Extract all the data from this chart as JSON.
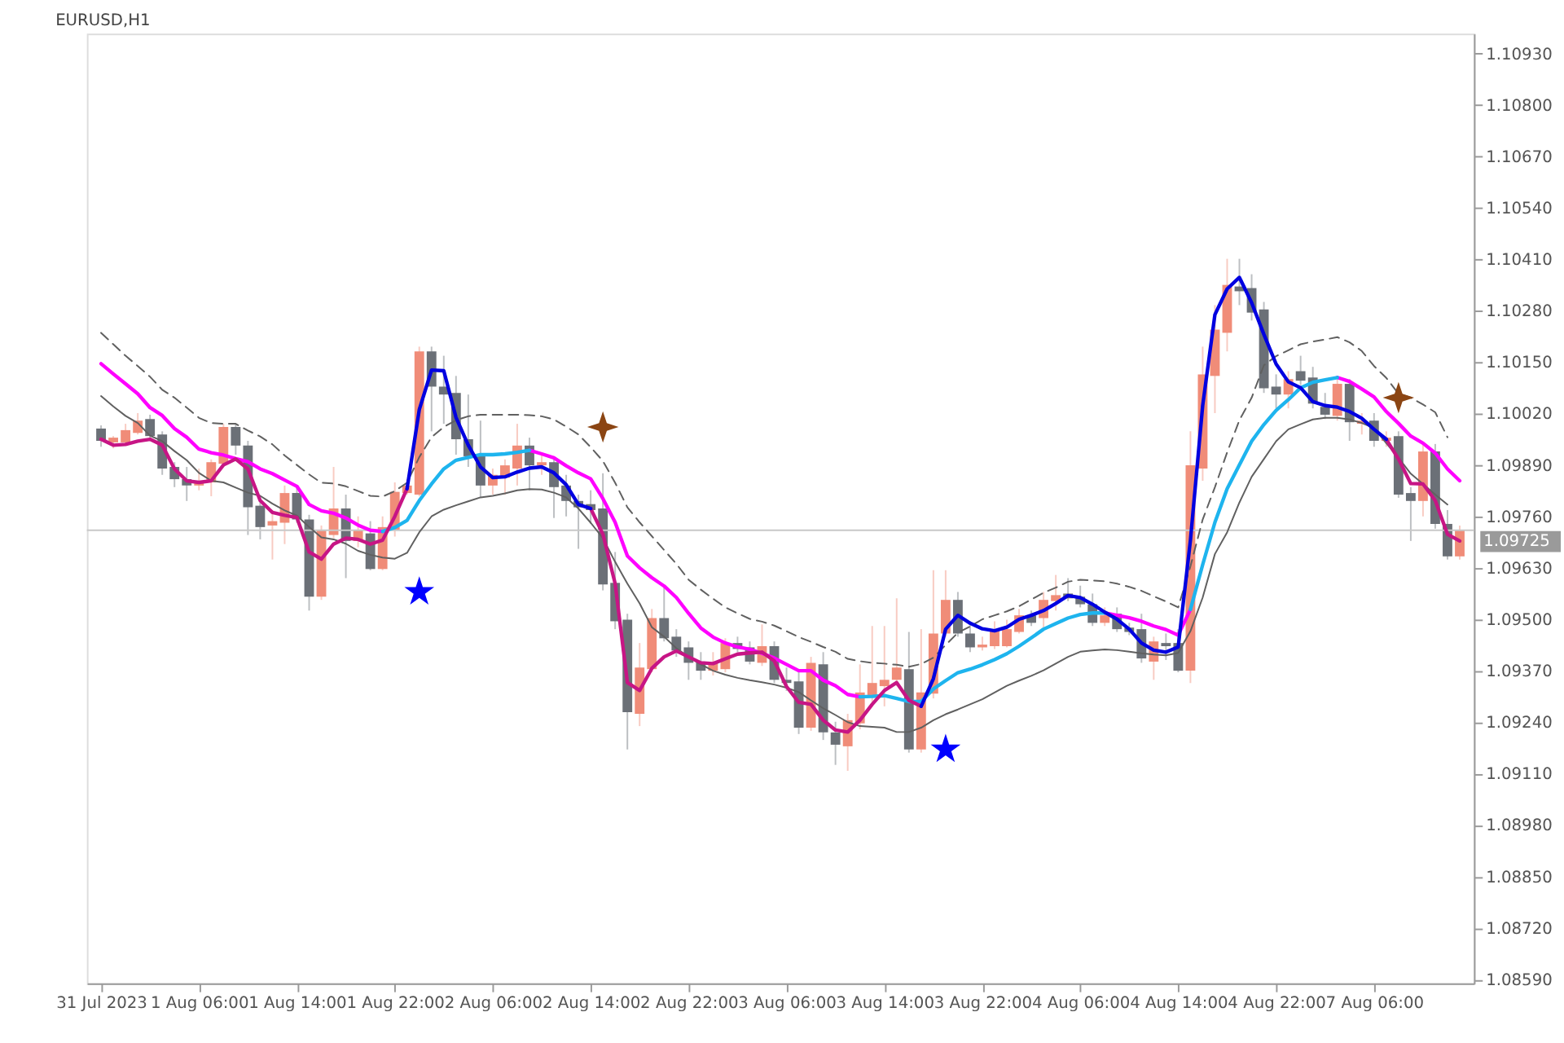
{
  "chart_data": {
    "type": "candlestick",
    "title": "EURUSD,H1",
    "categories": [
      "31 Jul 2023",
      null,
      null,
      null,
      null,
      null,
      null,
      null,
      "1 Aug 06:00",
      null,
      null,
      null,
      null,
      null,
      null,
      null,
      "1 Aug 14:00",
      null,
      null,
      null,
      null,
      null,
      null,
      null,
      "1 Aug 22:00",
      null,
      null,
      null,
      null,
      null,
      null,
      null,
      "2 Aug 06:00",
      null,
      null,
      null,
      null,
      null,
      null,
      null,
      "2 Aug 14:00",
      null,
      null,
      null,
      null,
      null,
      null,
      null,
      "2 Aug 22:00",
      null,
      null,
      null,
      null,
      null,
      null,
      null,
      "3 Aug 06:00",
      null,
      null,
      null,
      null,
      null,
      null,
      null,
      "3 Aug 14:00",
      null,
      null,
      null,
      null,
      null,
      null,
      null,
      "3 Aug 22:00",
      null,
      null,
      null,
      null,
      null,
      null,
      null,
      "4 Aug 06:00",
      null,
      null,
      null,
      null,
      null,
      null,
      null,
      "4 Aug 14:00",
      null,
      null,
      null,
      null,
      null,
      null,
      null,
      "4 Aug 22:00",
      null,
      null,
      null,
      null,
      null,
      null,
      null,
      "7 Aug 06:00",
      null,
      null,
      null,
      null,
      null,
      null,
      null
    ],
    "ohlc": [
      [
        1.09982,
        1.0999,
        1.09936,
        1.09951
      ],
      [
        1.09947,
        1.09963,
        1.09932,
        1.09959
      ],
      [
        1.09947,
        1.09994,
        1.09943,
        1.09978
      ],
      [
        1.09971,
        1.10021,
        1.09967,
        1.10002
      ],
      [
        1.10006,
        1.10017,
        1.09955,
        1.09963
      ],
      [
        1.09967,
        1.09975,
        1.09865,
        1.09881
      ],
      [
        1.09885,
        1.09897,
        1.09834,
        1.09854
      ],
      [
        1.09854,
        1.09885,
        1.09799,
        1.09838
      ],
      [
        1.09838,
        1.09881,
        1.09826,
        1.0985
      ],
      [
        1.09846,
        1.09904,
        1.09811,
        1.09897
      ],
      [
        1.09893,
        1.09994,
        1.09885,
        1.09986
      ],
      [
        1.09986,
        1.09994,
        1.09916,
        1.09939
      ],
      [
        1.09939,
        1.09951,
        1.09713,
        1.09783
      ],
      [
        1.09787,
        1.09807,
        1.09702,
        1.09733
      ],
      [
        1.09737,
        1.09776,
        1.09651,
        1.09748
      ],
      [
        1.09744,
        1.09838,
        1.0969,
        1.09819
      ],
      [
        1.09819,
        1.09838,
        1.09744,
        1.09752
      ],
      [
        1.09752,
        1.09764,
        1.09522,
        1.09557
      ],
      [
        1.09557,
        1.09737,
        1.09549,
        1.09725
      ],
      [
        1.09713,
        1.09885,
        1.09705,
        1.0978
      ],
      [
        1.0978,
        1.09815,
        1.09604,
        1.09698
      ],
      [
        1.09698,
        1.0976,
        1.09682,
        1.09725
      ],
      [
        1.09717,
        1.09748,
        1.09624,
        1.09627
      ],
      [
        1.09627,
        1.0976,
        1.09624,
        1.09733
      ],
      [
        1.09725,
        1.09846,
        1.09709,
        1.09822
      ],
      [
        1.09819,
        1.09854,
        1.09815,
        1.09838
      ],
      [
        1.09815,
        1.10189,
        1.09811,
        1.10177
      ],
      [
        1.10177,
        1.10189,
        1.09975,
        1.10088
      ],
      [
        1.10088,
        1.10166,
        1.09994,
        1.10068
      ],
      [
        1.10072,
        1.10115,
        1.09916,
        1.09955
      ],
      [
        1.09955,
        1.10068,
        1.09885,
        1.09912
      ],
      [
        1.09912,
        1.10002,
        1.09807,
        1.09838
      ],
      [
        1.09838,
        1.09881,
        1.09815,
        1.09865
      ],
      [
        1.09858,
        1.09904,
        1.09815,
        1.09889
      ],
      [
        1.09881,
        1.09994,
        1.09838,
        1.09939
      ],
      [
        1.09939,
        1.09959,
        1.09826,
        1.09889
      ],
      [
        1.09889,
        1.09916,
        1.09865,
        1.09897
      ],
      [
        1.09897,
        1.09912,
        1.09756,
        1.09834
      ],
      [
        1.09838,
        1.09865,
        1.0976,
        1.09799
      ],
      [
        1.09799,
        1.09815,
        1.09678,
        1.09783
      ],
      [
        1.09791,
        1.09826,
        1.09741,
        1.09776
      ],
      [
        1.0978,
        1.09869,
        1.09573,
        1.09588
      ],
      [
        1.09592,
        1.0967,
        1.09475,
        1.09495
      ],
      [
        1.09499,
        1.09514,
        1.09171,
        1.09265
      ],
      [
        1.09261,
        1.0944,
        1.0923,
        1.09378
      ],
      [
        1.09374,
        1.09526,
        1.09366,
        1.09503
      ],
      [
        1.09503,
        1.09581,
        1.09444,
        1.09452
      ],
      [
        1.09456,
        1.09475,
        1.09405,
        1.09421
      ],
      [
        1.09429,
        1.09444,
        1.09347,
        1.0939
      ],
      [
        1.09393,
        1.09417,
        1.09347,
        1.0937
      ],
      [
        1.0937,
        1.09417,
        1.09358,
        1.0939
      ],
      [
        1.09374,
        1.09452,
        1.09366,
        1.0944
      ],
      [
        1.0944,
        1.09456,
        1.09417,
        1.09425
      ],
      [
        1.09429,
        1.09444,
        1.09386,
        1.09393
      ],
      [
        1.0939,
        1.09487,
        1.09382,
        1.09432
      ],
      [
        1.09432,
        1.09444,
        1.09339,
        1.09347
      ],
      [
        1.09347,
        1.09378,
        1.09319,
        1.09339
      ],
      [
        1.09343,
        1.09366,
        1.0921,
        1.09226
      ],
      [
        1.09226,
        1.09405,
        1.09218,
        1.0939
      ],
      [
        1.09386,
        1.09417,
        1.09195,
        1.09214
      ],
      [
        1.09214,
        1.09241,
        1.09132,
        1.09183
      ],
      [
        1.09179,
        1.09261,
        1.09117,
        1.09245
      ],
      [
        1.09237,
        1.09386,
        1.09222,
        1.09315
      ],
      [
        1.09308,
        1.09483,
        1.0928,
        1.09339
      ],
      [
        1.09331,
        1.09483,
        1.0928,
        1.09347
      ],
      [
        1.09347,
        1.09553,
        1.09331,
        1.09378
      ],
      [
        1.09374,
        1.09468,
        1.09163,
        1.09171
      ],
      [
        1.09171,
        1.09475,
        1.09163,
        1.09315
      ],
      [
        1.09312,
        1.09624,
        1.093,
        1.09464
      ],
      [
        1.09464,
        1.09624,
        1.09456,
        1.09549
      ],
      [
        1.09549,
        1.09569,
        1.09456,
        1.09464
      ],
      [
        1.09464,
        1.09495,
        1.09417,
        1.09429
      ],
      [
        1.09429,
        1.09456,
        1.09421,
        1.09436
      ],
      [
        1.09432,
        1.09495,
        1.09425,
        1.09471
      ],
      [
        1.09432,
        1.09499,
        1.09429,
        1.09475
      ],
      [
        1.09468,
        1.09526,
        1.09464,
        1.0951
      ],
      [
        1.0951,
        1.09522,
        1.09483,
        1.09491
      ],
      [
        1.09503,
        1.09569,
        1.09475,
        1.09549
      ],
      [
        1.09546,
        1.09612,
        1.09522,
        1.09561
      ],
      [
        1.09565,
        1.09604,
        1.09546,
        1.09553
      ],
      [
        1.09557,
        1.09585,
        1.0953,
        1.09538
      ],
      [
        1.09538,
        1.09565,
        1.09483,
        1.09491
      ],
      [
        1.09491,
        1.0953,
        1.09483,
        1.0951
      ],
      [
        1.09514,
        1.0953,
        1.09468,
        1.09475
      ],
      [
        1.09479,
        1.09491,
        1.0946,
        1.09468
      ],
      [
        1.09475,
        1.09514,
        1.0939,
        1.09401
      ],
      [
        1.09393,
        1.09456,
        1.09347,
        1.09444
      ],
      [
        1.0944,
        1.09464,
        1.09397,
        1.09432
      ],
      [
        1.0944,
        1.09475,
        1.09366,
        1.0937
      ],
      [
        1.0937,
        1.09975,
        1.09339,
        1.09889
      ],
      [
        1.09881,
        1.10189,
        1.0985,
        1.10119
      ],
      [
        1.10115,
        1.10294,
        1.10021,
        1.10232
      ],
      [
        1.10224,
        1.10411,
        1.10177,
        1.10345
      ],
      [
        1.10341,
        1.10411,
        1.10294,
        1.10329
      ],
      [
        1.10337,
        1.10372,
        1.10255,
        1.10275
      ],
      [
        1.10283,
        1.10302,
        1.10072,
        1.10084
      ],
      [
        1.10088,
        1.10119,
        1.10033,
        1.10068
      ],
      [
        1.10068,
        1.10127,
        1.10033,
        1.10107
      ],
      [
        1.10127,
        1.10166,
        1.10092,
        1.10103
      ],
      [
        1.10111,
        1.10138,
        1.10033,
        1.10045
      ],
      [
        1.10037,
        1.10072,
        1.10006,
        1.10017
      ],
      [
        1.10014,
        1.10107,
        1.10002,
        1.10095
      ],
      [
        1.10095,
        1.10107,
        1.09951,
        1.09998
      ],
      [
        1.09994,
        1.10021,
        1.09967,
        1.10002
      ],
      [
        1.10002,
        1.10021,
        1.09936,
        1.09951
      ],
      [
        1.09951,
        1.09975,
        1.09936,
        1.09959
      ],
      [
        1.09963,
        1.09975,
        1.09807,
        1.09815
      ],
      [
        1.09819,
        1.09834,
        1.09698,
        1.09799
      ],
      [
        1.09799,
        1.09943,
        1.0976,
        1.09924
      ],
      [
        1.09924,
        1.09943,
        1.09729,
        1.09741
      ],
      [
        1.09741,
        1.09776,
        1.09651,
        1.09659
      ],
      [
        1.09659,
        1.09737,
        1.09651,
        1.09725
      ]
    ],
    "colors": [
      "#6b7077",
      "#f08c78",
      "#f08c78",
      "#f08c78",
      "#6b7077",
      "#6b7077",
      "#6b7077",
      "#6b7077",
      "#f08c78",
      "#f08c78",
      "#f08c78",
      "#6b7077",
      "#6b7077",
      "#6b7077",
      "#f08c78",
      "#f08c78",
      "#6b7077",
      "#6b7077",
      "#f08c78",
      "#f08c78",
      "#6b7077",
      "#f08c78",
      "#6b7077",
      "#f08c78",
      "#f08c78",
      "#f08c78",
      "#f08c78",
      "#6b7077",
      "#6b7077",
      "#6b7077",
      "#6b7077",
      "#6b7077",
      "#f08c78",
      "#f08c78",
      "#f08c78",
      "#6b7077",
      "#f08c78",
      "#6b7077",
      "#6b7077",
      "#6b7077",
      "#6b7077",
      "#6b7077",
      "#6b7077",
      "#6b7077",
      "#f08c78",
      "#f08c78",
      "#6b7077",
      "#6b7077",
      "#6b7077",
      "#6b7077",
      "#f08c78",
      "#f08c78",
      "#6b7077",
      "#6b7077",
      "#f08c78",
      "#6b7077",
      "#6b7077",
      "#6b7077",
      "#f08c78",
      "#6b7077",
      "#6b7077",
      "#f08c78",
      "#f08c78",
      "#f08c78",
      "#f08c78",
      "#f08c78",
      "#6b7077",
      "#f08c78",
      "#f08c78",
      "#f08c78",
      "#6b7077",
      "#6b7077",
      "#f08c78",
      "#f08c78",
      "#f08c78",
      "#f08c78",
      "#6b7077",
      "#f08c78",
      "#f08c78",
      "#6b7077",
      "#6b7077",
      "#6b7077",
      "#f08c78",
      "#6b7077",
      "#6b7077",
      "#6b7077",
      "#f08c78",
      "#6b7077",
      "#6b7077",
      "#f08c78",
      "#f08c78",
      "#f08c78",
      "#f08c78",
      "#6b7077",
      "#6b7077",
      "#6b7077",
      "#6b7077",
      "#f08c78",
      "#6b7077",
      "#6b7077",
      "#6b7077",
      "#f08c78",
      "#6b7077",
      "#f08c78",
      "#6b7077",
      "#f08c78",
      "#6b7077",
      "#6b7077",
      "#f08c78",
      "#6b7077",
      "#6b7077",
      "#f08c78"
    ],
    "ylim": [
      1.0858,
      1.1098
    ],
    "yticks": [
      {
        "value": 1.0859,
        "label": "1.08590"
      },
      {
        "value": 1.0872,
        "label": "1.08720"
      },
      {
        "value": 1.0885,
        "label": "1.08850"
      },
      {
        "value": 1.0898,
        "label": "1.08980"
      },
      {
        "value": 1.0911,
        "label": "1.09110"
      },
      {
        "value": 1.0924,
        "label": "1.09240"
      },
      {
        "value": 1.0937,
        "label": "1.09370"
      },
      {
        "value": 1.095,
        "label": "1.09500"
      },
      {
        "value": 1.0963,
        "label": "1.09630"
      },
      {
        "value": 1.0976,
        "label": "1.09760"
      },
      {
        "value": 1.0989,
        "label": "1.09890"
      },
      {
        "value": 1.1002,
        "label": "1.10020"
      },
      {
        "value": 1.1015,
        "label": "1.10150"
      },
      {
        "value": 1.1028,
        "label": "1.10280"
      },
      {
        "value": 1.1041,
        "label": "1.10410"
      },
      {
        "value": 1.1054,
        "label": "1.10540"
      },
      {
        "value": 1.1067,
        "label": "1.10670"
      },
      {
        "value": 1.108,
        "label": "1.10800"
      },
      {
        "value": 1.1093,
        "label": "1.10930"
      }
    ],
    "ref_lines": [
      {
        "axis": "y",
        "value": 1.09725,
        "label": "1.09725",
        "color": "#c8c8c8"
      }
    ],
    "grid": false,
    "series": [
      {
        "type": "line",
        "color": "#606060",
        "line_style": "dashed",
        "values": [
          1.10224,
          1.10195,
          1.10166,
          1.1014,
          1.10113,
          1.1008,
          1.1006,
          1.10035,
          1.10009,
          1.09996,
          1.09994,
          1.09994,
          1.09977,
          1.09962,
          1.09942,
          1.09914,
          1.0989,
          1.09866,
          1.09845,
          1.09843,
          1.09836,
          1.09824,
          1.09812,
          1.0981,
          1.09824,
          1.09845,
          1.0991,
          1.0996,
          1.09986,
          1.10003,
          1.10013,
          1.10017,
          1.10017,
          1.10017,
          1.10017,
          1.10016,
          1.10013,
          1.10005,
          1.09987,
          1.09967,
          1.09935,
          1.099,
          1.09845,
          1.09783,
          1.09745,
          1.0971,
          1.09675,
          1.0964,
          1.096,
          1.09575,
          1.09552,
          1.0953,
          1.09515,
          1.09501,
          1.09494,
          1.09484,
          1.0947,
          1.09455,
          1.09443,
          1.0943,
          1.09418,
          1.094,
          1.09394,
          1.0939,
          1.09388,
          1.09385,
          1.0938,
          1.09387,
          1.09403,
          1.09435,
          1.09466,
          1.09482,
          1.095,
          1.0951,
          1.0952,
          1.09533,
          1.0955,
          1.09567,
          1.0958,
          1.09595,
          1.096,
          1.09598,
          1.09596,
          1.0959,
          1.09582,
          1.09572,
          1.09558,
          1.09545,
          1.0953,
          1.09634,
          1.09752,
          1.09834,
          1.09922,
          1.10003,
          1.1006,
          1.10142,
          1.10165,
          1.1018,
          1.10195,
          1.10202,
          1.10207,
          1.10213,
          1.102,
          1.10178,
          1.1014,
          1.1011,
          1.1007,
          1.1006,
          1.10043,
          1.10023,
          1.0996,
          null
        ]
      },
      {
        "type": "line",
        "color": "#606060",
        "line_style": "solid",
        "values": [
          1.10064,
          1.10038,
          1.10014,
          1.09996,
          1.09964,
          1.0995,
          1.09925,
          1.09902,
          1.0987,
          1.0985,
          1.09846,
          1.09833,
          1.0982,
          1.09812,
          1.09792,
          1.09775,
          1.09762,
          1.09733,
          1.09707,
          1.09702,
          1.09691,
          1.09673,
          1.09663,
          1.09656,
          1.09653,
          1.09668,
          1.0972,
          1.0976,
          1.09777,
          1.09788,
          1.09798,
          1.09808,
          1.09812,
          1.09818,
          1.09826,
          1.09829,
          1.09828,
          1.0982,
          1.09808,
          1.0978,
          1.09744,
          1.09705,
          1.09645,
          1.0959,
          1.0954,
          1.0948,
          1.09456,
          1.09427,
          1.09405,
          1.09386,
          1.0937,
          1.0936,
          1.09352,
          1.09346,
          1.09341,
          1.09335,
          1.09327,
          1.09316,
          1.09295,
          1.09275,
          1.09258,
          1.0924,
          1.0923,
          1.09228,
          1.09226,
          1.09215,
          1.09215,
          1.09226,
          1.09245,
          1.0926,
          1.09272,
          1.09285,
          1.09298,
          1.09315,
          1.09332,
          1.09345,
          1.09357,
          1.09371,
          1.09388,
          1.09405,
          1.09418,
          1.09421,
          1.09424,
          1.09422,
          1.09418,
          1.09414,
          1.09411,
          1.09409,
          1.09415,
          1.0947,
          1.09555,
          1.09665,
          1.0972,
          1.09795,
          1.0986,
          1.09905,
          1.0995,
          1.0998,
          1.09993,
          1.10005,
          1.10009,
          1.10009,
          1.10005,
          1.09996,
          1.09983,
          1.09945,
          1.09908,
          1.09868,
          1.09842,
          1.09815,
          1.0979,
          null
        ]
      },
      {
        "type": "line",
        "color": "#ff00ff",
        "values": [
          1.10146,
          1.1012,
          1.10095,
          1.1007,
          1.10035,
          1.10015,
          1.09982,
          1.0996,
          1.0993,
          1.09921,
          1.09915,
          1.09906,
          1.09898,
          1.0988,
          1.09868,
          1.09852,
          1.09836,
          1.0979,
          1.09774,
          1.09768,
          1.09756,
          1.09738,
          1.09725,
          1.09722,
          null,
          null,
          null,
          null,
          null,
          null,
          null,
          null,
          null,
          null,
          null,
          1.09927,
          1.09918,
          1.09908,
          1.09888,
          1.0987,
          1.09855,
          1.09805,
          1.09745,
          1.0966,
          1.0963,
          1.09605,
          1.09584,
          1.09555,
          1.09515,
          1.09478,
          1.09455,
          1.0944,
          1.0943,
          1.09424,
          1.09414,
          1.09402,
          1.09386,
          1.0937,
          1.0937,
          1.09346,
          1.09332,
          1.0931,
          1.09304,
          null,
          null,
          null,
          null,
          null,
          null,
          null,
          null,
          null,
          null,
          null,
          null,
          null,
          null,
          null,
          null,
          null,
          null,
          null,
          1.09516,
          1.0951,
          1.09504,
          1.09495,
          1.09483,
          1.09474,
          1.0946,
          1.09525,
          null,
          null,
          null,
          null,
          null,
          null,
          null,
          null,
          null,
          null,
          null,
          1.10111,
          1.10101,
          1.10082,
          1.10062,
          1.10025,
          1.09995,
          1.09963,
          1.09945,
          1.0992,
          1.0988,
          1.0985
        ]
      },
      {
        "type": "line",
        "color": "#1eb4ee",
        "values": [
          null,
          null,
          null,
          null,
          null,
          null,
          null,
          null,
          null,
          null,
          null,
          null,
          null,
          null,
          null,
          null,
          null,
          null,
          null,
          null,
          null,
          null,
          null,
          1.09722,
          1.09732,
          1.0975,
          1.098,
          1.09842,
          1.0988,
          1.09902,
          1.09909,
          1.09916,
          1.09916,
          1.09918,
          1.09922,
          1.09927,
          null,
          null,
          null,
          null,
          null,
          null,
          null,
          null,
          null,
          null,
          null,
          null,
          null,
          null,
          null,
          null,
          null,
          null,
          null,
          null,
          null,
          null,
          null,
          null,
          null,
          null,
          1.09304,
          1.09305,
          1.09307,
          1.093,
          1.09292,
          1.09292,
          1.09324,
          1.09345,
          1.09365,
          1.09374,
          1.09385,
          1.09398,
          1.09413,
          1.09432,
          1.09453,
          1.09475,
          1.09489,
          1.09503,
          1.09512,
          1.09516,
          1.09516,
          null,
          null,
          null,
          null,
          null,
          null,
          1.09525,
          1.09638,
          1.09745,
          1.0983,
          1.0989,
          1.0995,
          1.09992,
          1.10028,
          1.10055,
          1.10085,
          1.10099,
          1.10105,
          1.10111,
          null,
          null,
          null,
          null,
          null,
          null,
          null,
          null,
          null,
          null
        ]
      },
      {
        "type": "line",
        "color": "#c71585",
        "values": [
          1.09955,
          1.0994,
          1.09942,
          1.0995,
          1.09955,
          1.0994,
          1.0988,
          1.0985,
          1.09846,
          1.0985,
          1.0989,
          1.09905,
          1.0988,
          1.098,
          1.0977,
          1.09763,
          1.09757,
          1.0967,
          1.09652,
          1.0969,
          1.09705,
          1.09702,
          1.0969,
          1.097,
          1.0976,
          1.0983,
          null,
          null,
          null,
          null,
          null,
          null,
          null,
          null,
          null,
          null,
          null,
          null,
          null,
          null,
          1.0978,
          1.09715,
          1.0959,
          1.0934,
          1.0932,
          1.09376,
          1.09405,
          1.0942,
          1.09405,
          1.0939,
          1.09388,
          1.094,
          1.09412,
          1.09415,
          1.09417,
          1.09395,
          1.0933,
          1.0929,
          1.09285,
          1.09245,
          1.0922,
          1.09215,
          1.09245,
          1.09285,
          1.0932,
          1.0934,
          1.09295,
          1.0928,
          null,
          null,
          null,
          null,
          null,
          null,
          null,
          null,
          null,
          null,
          null,
          null,
          null,
          null,
          null,
          null,
          null,
          null,
          null,
          null,
          null,
          null,
          null,
          null,
          null,
          null,
          null,
          null,
          null,
          null,
          null,
          null,
          null,
          null,
          null,
          null,
          null,
          1.09955,
          1.09905,
          1.09843,
          1.09842,
          1.098,
          1.09715,
          1.09698
        ]
      },
      {
        "type": "line",
        "color": "#0000e0",
        "values": [
          null,
          null,
          null,
          null,
          null,
          null,
          null,
          null,
          null,
          null,
          null,
          null,
          null,
          null,
          null,
          null,
          null,
          null,
          null,
          null,
          null,
          null,
          null,
          null,
          null,
          1.0983,
          1.1003,
          1.1013,
          1.10128,
          1.1001,
          1.0994,
          1.09885,
          1.09858,
          1.0986,
          1.09872,
          1.09882,
          1.09885,
          1.0987,
          1.0984,
          1.0979,
          1.0978,
          null,
          null,
          null,
          null,
          null,
          null,
          null,
          null,
          null,
          null,
          null,
          null,
          null,
          null,
          null,
          null,
          null,
          null,
          null,
          null,
          null,
          null,
          null,
          null,
          null,
          null,
          1.0928,
          1.0935,
          1.09475,
          1.0951,
          1.0949,
          1.09476,
          1.09471,
          1.0948,
          1.095,
          1.0951,
          1.09522,
          1.0954,
          1.0956,
          1.09555,
          1.09538,
          1.09518,
          1.095,
          1.09475,
          1.0944,
          1.09422,
          1.09417,
          1.0943,
          1.097,
          1.1004,
          1.1027,
          1.10335,
          1.10364,
          1.103,
          1.1022,
          1.10145,
          1.101,
          1.10085,
          1.1005,
          1.1004,
          1.10036,
          1.10025,
          1.10008,
          1.0998,
          1.09955,
          null,
          null,
          null,
          null,
          null,
          null
        ]
      },
      {
        "type": "scatter",
        "color": "#0000ff",
        "marker": "star",
        "values": [
          null,
          null,
          null,
          null,
          null,
          null,
          null,
          null,
          null,
          null,
          null,
          null,
          null,
          null,
          null,
          null,
          null,
          null,
          null,
          null,
          null,
          null,
          null,
          null,
          null,
          null,
          1.09569,
          null,
          null,
          null,
          null,
          null,
          null,
          null,
          null,
          null,
          null,
          null,
          null,
          null,
          null,
          null,
          null,
          null,
          null,
          null,
          null,
          null,
          null,
          null,
          null,
          null,
          null,
          null,
          null,
          null,
          null,
          null,
          null,
          null,
          null,
          null,
          null,
          null,
          null,
          null,
          null,
          null,
          null,
          1.09171,
          null,
          null,
          null,
          null,
          null,
          null,
          null,
          null,
          null,
          null,
          null,
          null,
          null,
          null,
          null,
          null,
          null,
          null,
          null,
          null,
          null,
          null,
          null,
          null,
          null,
          null,
          null,
          null,
          null,
          null,
          null,
          null,
          null,
          null,
          null,
          null,
          null,
          null,
          null,
          null,
          null,
          null
        ]
      },
      {
        "type": "scatter",
        "color": "#8b4513",
        "marker": "cross",
        "values": [
          null,
          null,
          null,
          null,
          null,
          null,
          null,
          null,
          null,
          null,
          null,
          null,
          null,
          null,
          null,
          null,
          null,
          null,
          null,
          null,
          null,
          null,
          null,
          null,
          null,
          null,
          null,
          null,
          null,
          null,
          null,
          null,
          null,
          null,
          null,
          null,
          null,
          null,
          null,
          null,
          null,
          1.09986,
          null,
          null,
          null,
          null,
          null,
          null,
          null,
          null,
          null,
          null,
          null,
          null,
          null,
          null,
          null,
          null,
          null,
          null,
          null,
          null,
          null,
          null,
          null,
          null,
          null,
          null,
          null,
          null,
          null,
          null,
          null,
          null,
          null,
          null,
          null,
          null,
          null,
          null,
          null,
          null,
          null,
          null,
          null,
          null,
          null,
          null,
          null,
          null,
          null,
          null,
          null,
          null,
          null,
          null,
          null,
          null,
          null,
          null,
          null,
          null,
          null,
          null,
          null,
          null,
          1.1006,
          null,
          null,
          null,
          null,
          null
        ]
      }
    ]
  }
}
